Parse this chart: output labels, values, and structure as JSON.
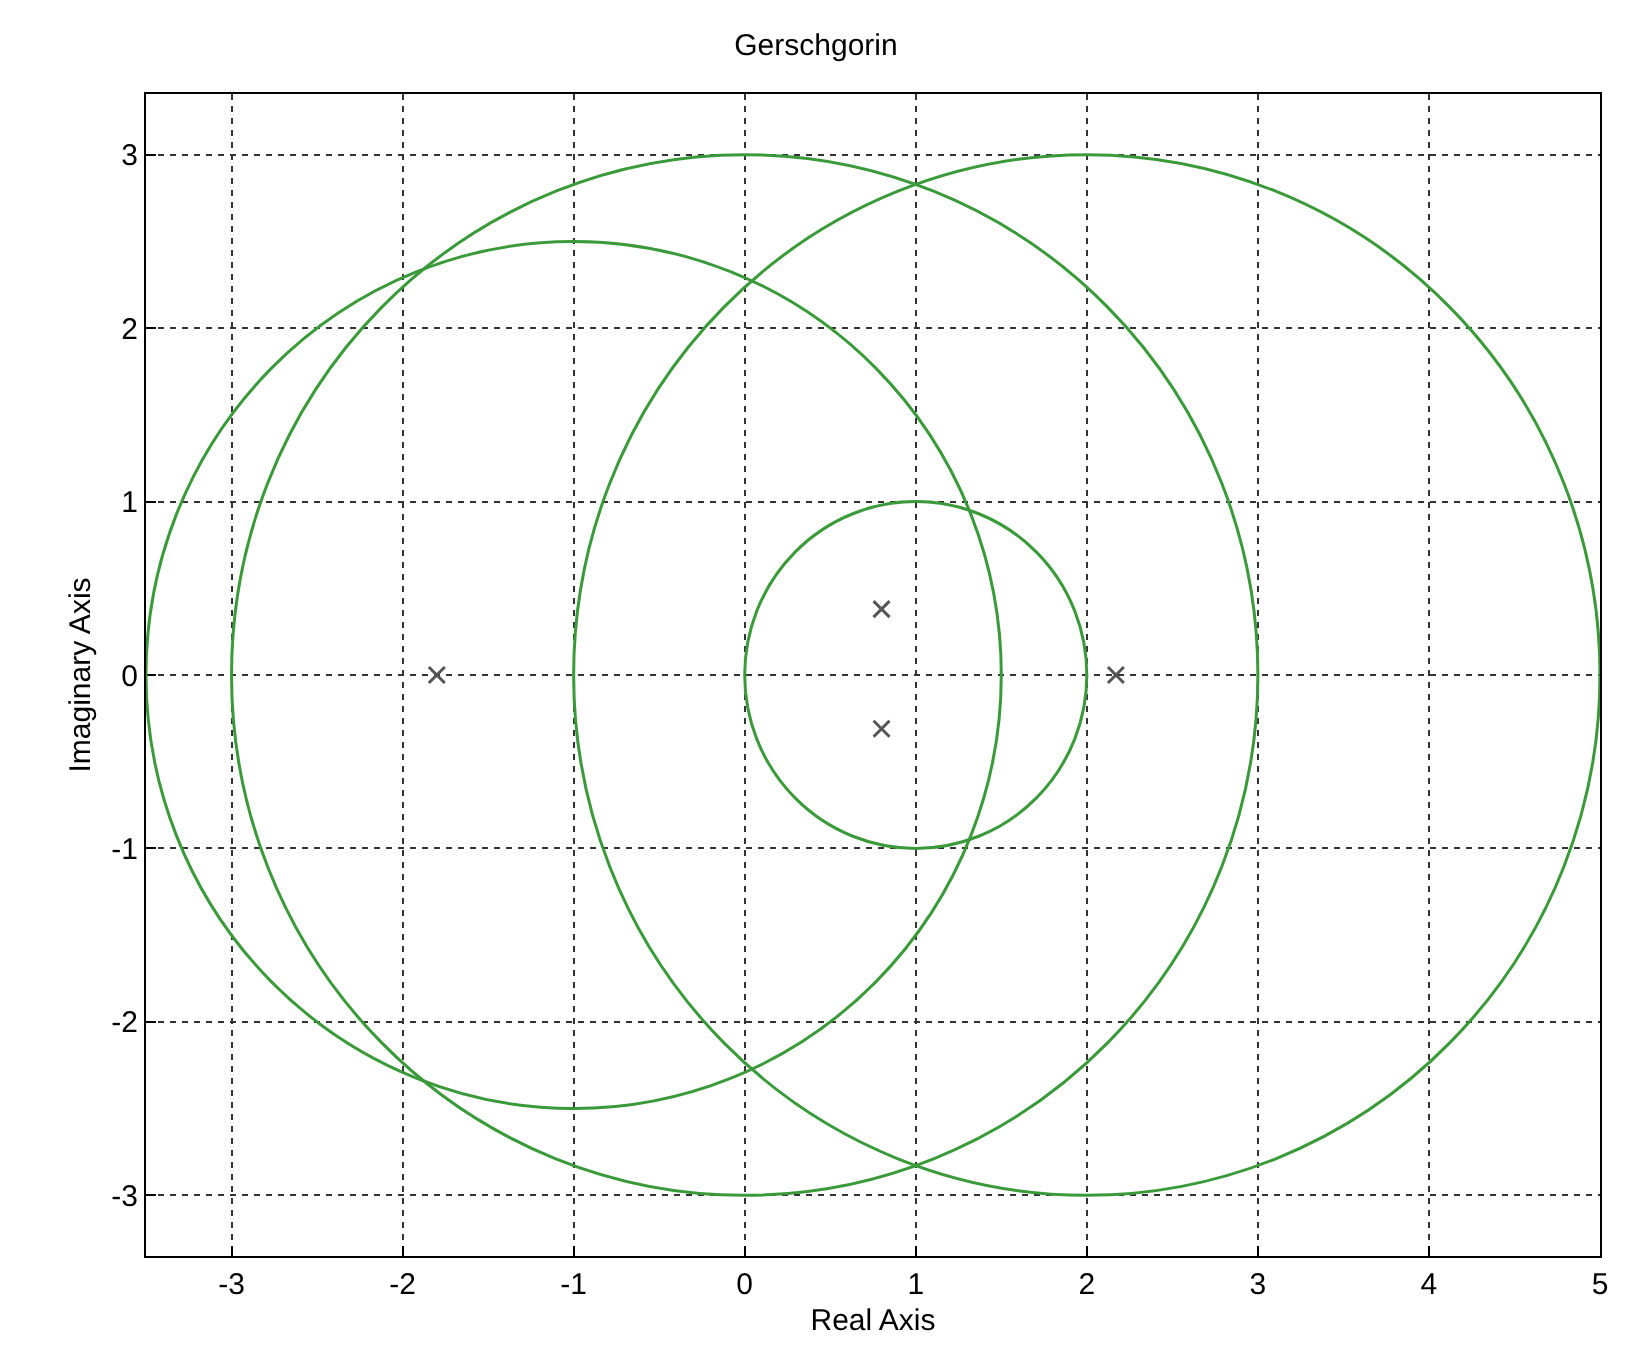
{
  "chart_data": {
    "type": "scatter",
    "title": "Gerschgorin",
    "xlabel": "Real Axis",
    "ylabel": "Imaginary Axis",
    "xlim": [
      -3.5,
      5
    ],
    "ylim": [
      -3.35,
      3.35
    ],
    "xticks": [
      -3,
      -2,
      -1,
      0,
      1,
      2,
      3,
      4,
      5
    ],
    "yticks": [
      -3,
      -2,
      -1,
      0,
      1,
      2,
      3
    ],
    "grid": true,
    "marker": "cross",
    "series": [
      {
        "color": "#555555",
        "x": [
          -1.8,
          0.8,
          0.8,
          2.17
        ],
        "values": [
          0,
          0.38,
          -0.31,
          0
        ]
      }
    ]
  }
}
